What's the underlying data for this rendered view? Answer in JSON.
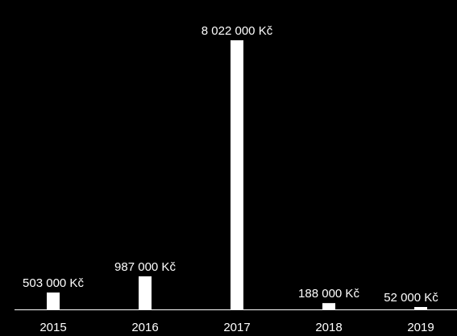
{
  "chart_data": {
    "type": "bar",
    "categories": [
      "2015",
      "2016",
      "2017",
      "2018",
      "2019"
    ],
    "values": [
      503000,
      987000,
      8022000,
      188000,
      52000
    ],
    "value_labels": [
      "503 000 Kč",
      "987 000 Kč",
      "8 022 000 Kč",
      "188 000 Kč",
      "52 000 Kč"
    ],
    "ylim": [
      0,
      8022000
    ],
    "grid": false,
    "legend": "none",
    "colors": {
      "background": "#000000",
      "bar": "#ffffff",
      "text": "#ffffff",
      "axis": "#ffffff"
    }
  }
}
